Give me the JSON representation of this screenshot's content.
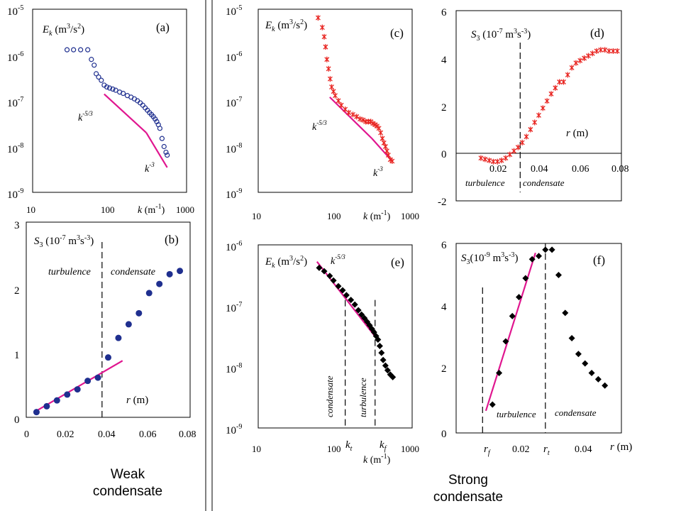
{
  "captions": {
    "left": [
      "Weak",
      "condensate"
    ],
    "right": [
      "Strong",
      "condensate"
    ]
  },
  "colors": {
    "blue": "#1f2f8f",
    "red": "#e8231f",
    "magenta": "#e0168f",
    "black": "#000000"
  },
  "chart_data": [
    {
      "panel": "(a)",
      "type": "scatter",
      "scale": "log-log",
      "ylabel": "E_k (m^3/s^2)",
      "xlabel": "k (m^-1)",
      "xlim": [
        10,
        1000
      ],
      "ylim": [
        1e-09,
        1e-05
      ],
      "xticks": [
        "10",
        "100",
        "1000"
      ],
      "yticks": [
        "10^-9",
        "10^-8",
        "10^-7",
        "10^-6",
        "10^-5"
      ],
      "marker": "open-circle",
      "color": "#1f2f8f",
      "series": [
        {
          "x": [
            28,
            34,
            42,
            52,
            58,
            63,
            67,
            72,
            78,
            85,
            92,
            100,
            110,
            120,
            135,
            150,
            170,
            190,
            210,
            230,
            250,
            270,
            290,
            310,
            330,
            350,
            370,
            390,
            410,
            430,
            450,
            480,
            510,
            540,
            560
          ],
          "y": [
            1.3e-06,
            1.3e-06,
            1.3e-06,
            1.3e-06,
            8e-07,
            6e-07,
            3.9e-07,
            3.3e-07,
            2.8e-07,
            2.2e-07,
            2e-07,
            1.9e-07,
            1.8e-07,
            1.7e-07,
            1.55e-07,
            1.45e-07,
            1.3e-07,
            1.2e-07,
            1.1e-07,
            1e-07,
            9e-08,
            8e-08,
            7e-08,
            6.2e-08,
            5.5e-08,
            5e-08,
            4.5e-08,
            4e-08,
            3.5e-08,
            3e-08,
            2.5e-08,
            1.5e-08,
            1e-08,
            7.5e-09,
            6.5e-09
          ]
        }
      ],
      "reference_lines": [
        {
          "label": "k^-5/3",
          "x": [
            85,
            300
          ],
          "y": [
            1.4e-07,
            2e-08
          ],
          "color": "#e0168f"
        },
        {
          "label": "k^-3",
          "x": [
            300,
            560
          ],
          "y": [
            2e-08,
            3.5e-09
          ],
          "color": "#e0168f"
        }
      ]
    },
    {
      "panel": "(b)",
      "type": "scatter",
      "ylabel": "S_3 (10^-7 m^3 s^-3)",
      "xlabel": "r (m)",
      "xlim": [
        0,
        0.08
      ],
      "ylim": [
        0,
        3
      ],
      "xticks": [
        "0",
        "0.02",
        "0.04",
        "0.06",
        "0.08"
      ],
      "yticks": [
        "0",
        "1",
        "2",
        "3"
      ],
      "marker": "filled-circle",
      "color": "#1f2f8f",
      "series": [
        {
          "x": [
            0.005,
            0.01,
            0.015,
            0.02,
            0.025,
            0.03,
            0.035,
            0.04,
            0.045,
            0.05,
            0.055,
            0.06,
            0.065,
            0.07,
            0.075
          ],
          "y": [
            0.08,
            0.17,
            0.26,
            0.35,
            0.43,
            0.56,
            0.61,
            0.92,
            1.22,
            1.43,
            1.6,
            1.91,
            2.05,
            2.2,
            2.25
          ]
        }
      ],
      "reference_lines": [
        {
          "x": [
            0.005,
            0.047
          ],
          "y": [
            0.1,
            0.87
          ],
          "color": "#e0168f"
        }
      ],
      "vline": 0.037,
      "region_labels": [
        "turbulence",
        "condensate"
      ]
    },
    {
      "panel": "(c)",
      "type": "scatter",
      "scale": "log-log",
      "ylabel": "E_k (m^3/s^2)",
      "xlabel": "k (m^-1)",
      "xlim": [
        10,
        1000
      ],
      "ylim": [
        1e-09,
        1e-05
      ],
      "xticks": [
        "10",
        "100",
        "1000"
      ],
      "yticks": [
        "10^-9",
        "10^-8",
        "10^-7",
        "10^-6",
        "10^-5"
      ],
      "marker": "cross",
      "color": "#e8231f",
      "series": [
        {
          "x": [
            60,
            68,
            72,
            75,
            78,
            82,
            86,
            90,
            95,
            100,
            110,
            120,
            135,
            150,
            170,
            190,
            210,
            230,
            250,
            270,
            290,
            310,
            330,
            350,
            370,
            390,
            410,
            430,
            450,
            470,
            490,
            520,
            550
          ],
          "y": [
            6.5e-06,
            4e-06,
            2.5e-06,
            1.5e-06,
            8e-07,
            5e-07,
            3e-07,
            2e-07,
            1.6e-07,
            1.3e-07,
            1e-07,
            8e-08,
            6.5e-08,
            5.5e-08,
            5e-08,
            4.5e-08,
            4e-08,
            3.8e-08,
            3.5e-08,
            3.5e-08,
            3.5e-08,
            3.2e-08,
            3e-08,
            2.8e-08,
            2.5e-08,
            2e-08,
            1.5e-08,
            1.2e-08,
            1e-08,
            8e-09,
            6.5e-09,
            5.2e-09,
            4.8e-09
          ]
        }
      ],
      "reference_lines": [
        {
          "label": "k^-5/3",
          "x": [
            85,
            300
          ],
          "y": [
            1.2e-07,
            1.5e-08
          ],
          "color": "#e0168f"
        },
        {
          "label": "k^-3",
          "x": [
            300,
            550
          ],
          "y": [
            1.5e-08,
            4.8e-09
          ],
          "color": "#e0168f"
        }
      ]
    },
    {
      "panel": "(d)",
      "type": "scatter",
      "ylabel": "S_3 (10^-7 m^3 s^-3)",
      "xlabel": "r (m)",
      "xlim": [
        0,
        0.08
      ],
      "ylim": [
        -2,
        6
      ],
      "xticks": [
        "0.02",
        "0.04",
        "0.06",
        "0.08"
      ],
      "yticks": [
        "-2",
        "0",
        "2",
        "4",
        "6"
      ],
      "marker": "cross",
      "color": "#e8231f",
      "series": [
        {
          "x": [
            0.012,
            0.014,
            0.016,
            0.018,
            0.02,
            0.022,
            0.024,
            0.026,
            0.028,
            0.03,
            0.032,
            0.034,
            0.036,
            0.038,
            0.04,
            0.042,
            0.044,
            0.046,
            0.048,
            0.05,
            0.052,
            0.054,
            0.056,
            0.058,
            0.06,
            0.062,
            0.064,
            0.066,
            0.068,
            0.07,
            0.072,
            0.074,
            0.076,
            0.078
          ],
          "y": [
            -0.2,
            -0.25,
            -0.3,
            -0.35,
            -0.35,
            -0.3,
            -0.2,
            -0.05,
            0.1,
            0.25,
            0.45,
            0.7,
            1.0,
            1.3,
            1.6,
            1.9,
            2.2,
            2.5,
            2.75,
            3.0,
            3.0,
            3.3,
            3.6,
            3.8,
            3.9,
            4.0,
            4.1,
            4.2,
            4.3,
            4.35,
            4.35,
            4.3,
            4.3,
            4.3
          ]
        }
      ],
      "vline": 0.031,
      "region_labels": [
        "turbulence",
        "condensate"
      ]
    },
    {
      "panel": "(e)",
      "type": "scatter",
      "scale": "log-log",
      "ylabel": "E_k (m^3/s^2)",
      "xlabel": "k (m^-1)",
      "xlim": [
        10,
        1000
      ],
      "ylim": [
        1e-09,
        1e-06
      ],
      "xticks": [
        "10",
        "100",
        "1000"
      ],
      "yticks": [
        "10^-9",
        "10^-8",
        "10^-7",
        "10^-6"
      ],
      "marker": "filled-diamond",
      "color": "#000000",
      "series": [
        {
          "x": [
            62,
            72,
            85,
            95,
            110,
            125,
            140,
            160,
            180,
            200,
            220,
            240,
            260,
            280,
            300,
            320,
            340,
            360,
            380,
            400,
            420,
            450,
            480,
            520,
            560
          ],
          "y": [
            4.2e-07,
            3.7e-07,
            3.1e-07,
            2.6e-07,
            2.1e-07,
            1.8e-07,
            1.5e-07,
            1.25e-07,
            1.05e-07,
            8.5e-08,
            7.2e-08,
            6.3e-08,
            5.5e-08,
            4.8e-08,
            4.2e-08,
            3.7e-08,
            3.2e-08,
            2.8e-08,
            2.2e-08,
            1.7e-08,
            1.3e-08,
            1.05e-08,
            8.8e-09,
            7.5e-09,
            6.8e-09
          ]
        }
      ],
      "reference_lines": [
        {
          "label": "k^-5/3",
          "x": [
            58,
            340
          ],
          "y": [
            5.3e-07,
            3e-08
          ],
          "color": "#e0168f"
        }
      ],
      "vlines": [
        {
          "x": 135,
          "label": "k_t"
        },
        {
          "x": 330,
          "label": "k_f"
        }
      ],
      "region_labels": [
        "condensate",
        "turbulence"
      ]
    },
    {
      "panel": "(f)",
      "type": "scatter",
      "ylabel": "S_3 (10^-9 m^3 s^-3)",
      "xlabel": "r (m)",
      "xlim": [
        0,
        0.05
      ],
      "ylim": [
        0,
        6
      ],
      "xticks": [
        "0.02",
        "0.04"
      ],
      "yticks": [
        "0",
        "2",
        "4",
        "6"
      ],
      "marker": "filled-diamond",
      "color": "#000000",
      "series": [
        {
          "x": [
            0.011,
            0.013,
            0.015,
            0.017,
            0.019,
            0.021,
            0.023,
            0.025,
            0.027,
            0.029,
            0.031,
            0.033,
            0.035,
            0.037,
            0.039,
            0.041,
            0.043,
            0.045
          ],
          "y": [
            0.9,
            1.9,
            2.9,
            3.7,
            4.3,
            4.9,
            5.5,
            5.6,
            5.8,
            5.8,
            5.0,
            3.8,
            3.0,
            2.5,
            2.2,
            1.9,
            1.7,
            1.5
          ]
        }
      ],
      "reference_lines": [
        {
          "x": [
            0.009,
            0.024
          ],
          "y": [
            0.7,
            5.7
          ],
          "color": "#e0168f"
        }
      ],
      "vlines": [
        {
          "x": 0.008,
          "label": "r_f"
        },
        {
          "x": 0.027,
          "label": "r_t"
        }
      ],
      "region_labels": [
        "turbulence",
        "condensate"
      ]
    }
  ]
}
